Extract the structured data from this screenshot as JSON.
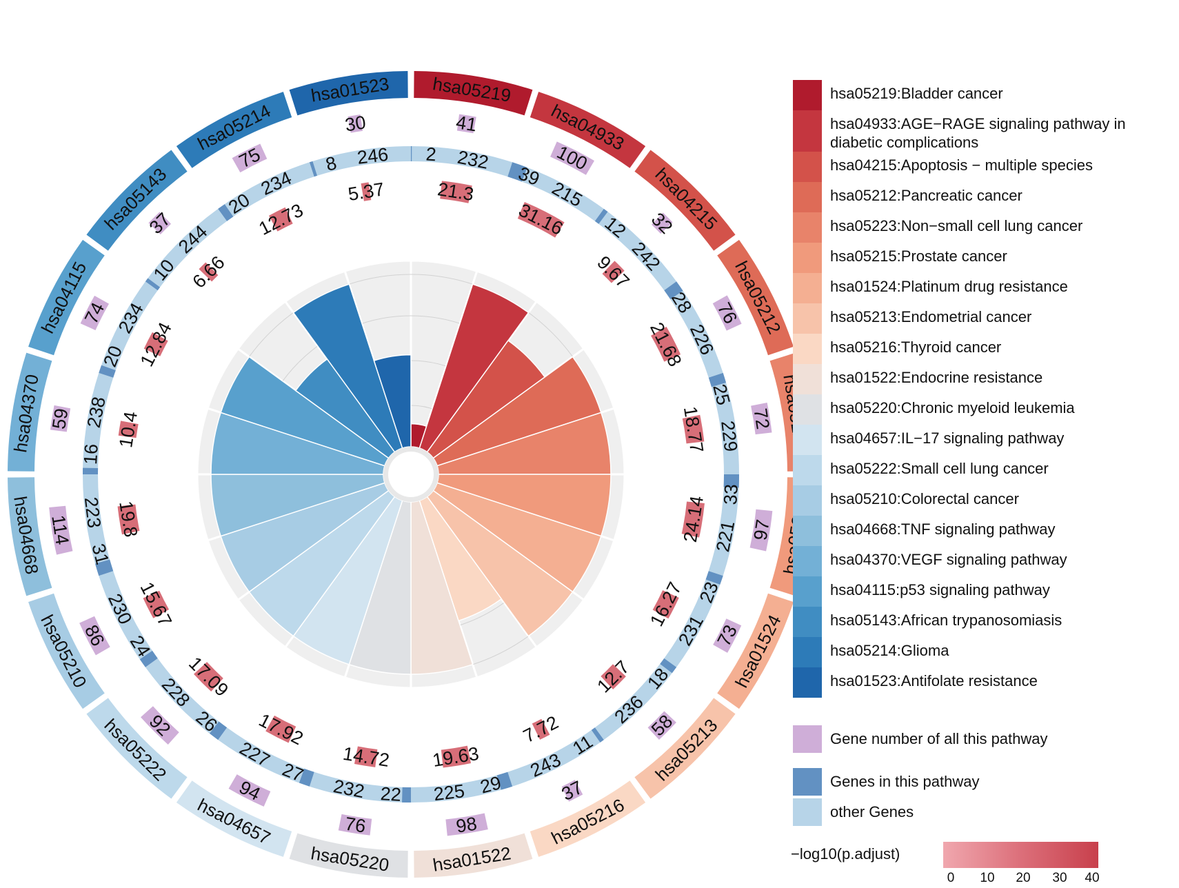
{
  "chart_data": {
    "type": "circular-enrichment",
    "pathways": [
      {
        "id": "hsa05219",
        "name": "hsa05219:Bladder cancer",
        "color": "#b01b2d",
        "total": 41,
        "genes_in": 2,
        "other": 232,
        "neglog10": 21.3
      },
      {
        "id": "hsa04933",
        "name": "hsa04933:AGE−RAGE signaling pathway in diabetic complications",
        "color": "#c4363f",
        "total": 100,
        "genes_in": 39,
        "other": 215,
        "neglog10": 31.16
      },
      {
        "id": "hsa04215",
        "name": "hsa04215:Apoptosis − multiple species",
        "color": "#d3524a",
        "total": 32,
        "genes_in": 12,
        "other": 242,
        "neglog10": 9.67
      },
      {
        "id": "hsa05212",
        "name": "hsa05212:Pancreatic cancer",
        "color": "#de6b57",
        "total": 76,
        "genes_in": 28,
        "other": 226,
        "neglog10": 21.68
      },
      {
        "id": "hsa05223",
        "name": "hsa05223:Non−small cell lung cancer",
        "color": "#e8836a",
        "total": 72,
        "genes_in": 25,
        "other": 229,
        "neglog10": 18.77
      },
      {
        "id": "hsa05215",
        "name": "hsa05215:Prostate cancer",
        "color": "#f09a7c",
        "total": 97,
        "genes_in": 33,
        "other": 221,
        "neglog10": 24.14
      },
      {
        "id": "hsa01524",
        "name": "hsa01524:Platinum drug resistance",
        "color": "#f4af92",
        "total": 73,
        "genes_in": 23,
        "other": 231,
        "neglog10": 16.27
      },
      {
        "id": "hsa05213",
        "name": "hsa05213:Endometrial cancer",
        "color": "#f7c3aa",
        "total": 58,
        "genes_in": 18,
        "other": 236,
        "neglog10": 12.7
      },
      {
        "id": "hsa05216",
        "name": "hsa05216:Thyroid cancer",
        "color": "#fad8c4",
        "total": 37,
        "genes_in": 11,
        "other": 243,
        "neglog10": 7.72
      },
      {
        "id": "hsa01522",
        "name": "hsa01522:Endocrine resistance",
        "color": "#f0e0d8",
        "total": 98,
        "genes_in": 29,
        "other": 225,
        "neglog10": 19.63
      },
      {
        "id": "hsa05220",
        "name": "hsa05220:Chronic myeloid leukemia",
        "color": "#dfe1e4",
        "total": 76,
        "genes_in": 22,
        "other": 232,
        "neglog10": 14.72
      },
      {
        "id": "hsa04657",
        "name": "hsa04657:IL−17 signaling pathway",
        "color": "#d2e4f0",
        "total": 94,
        "genes_in": 27,
        "other": 227,
        "neglog10": 17.92
      },
      {
        "id": "hsa05222",
        "name": "hsa05222:Small cell lung cancer",
        "color": "#bdd9eb",
        "total": 92,
        "genes_in": 26,
        "other": 228,
        "neglog10": 17.09
      },
      {
        "id": "hsa05210",
        "name": "hsa05210:Colorectal cancer",
        "color": "#a7cce4",
        "total": 86,
        "genes_in": 24,
        "other": 230,
        "neglog10": 15.67
      },
      {
        "id": "hsa04668",
        "name": "hsa04668:TNF signaling pathway",
        "color": "#8ebfdc",
        "total": 114,
        "genes_in": 31,
        "other": 223,
        "neglog10": 19.8
      },
      {
        "id": "hsa04370",
        "name": "hsa04370:VEGF signaling pathway",
        "color": "#73b0d6",
        "total": 59,
        "genes_in": 16,
        "other": 238,
        "neglog10": 10.4
      },
      {
        "id": "hsa04115",
        "name": "hsa04115:p53 signaling pathway",
        "color": "#58a0cd",
        "total": 74,
        "genes_in": 20,
        "other": 234,
        "neglog10": 12.84
      },
      {
        "id": "hsa05143",
        "name": "hsa05143:African trypanosomiasis",
        "color": "#408dc2",
        "total": 37,
        "genes_in": 10,
        "other": 244,
        "neglog10": 6.66
      },
      {
        "id": "hsa05214",
        "name": "hsa05214:Glioma",
        "color": "#2d7bb8",
        "total": 75,
        "genes_in": 20,
        "other": 234,
        "neglog10": 12.73
      },
      {
        "id": "hsa01523",
        "name": "hsa01523:Antifolate resistance",
        "color": "#1f66ab",
        "total": 30,
        "genes_in": 8,
        "other": 246,
        "neglog10": 5.37
      }
    ],
    "legend_extra": [
      {
        "label": "Gene number of all this pathway",
        "color": "#cfaed8"
      },
      {
        "label": "Genes in this pathway",
        "color": "#6291c2"
      },
      {
        "label": "other Genes",
        "color": "#b7d4e8"
      }
    ],
    "gradient": {
      "title": "−log10(p.adjust)",
      "ticks": [
        "0",
        "10",
        "20",
        "30",
        "40"
      ],
      "max": 40
    },
    "total_color": "#cfaed8",
    "genes_color": "#6291c2",
    "other_color": "#b7d4e8",
    "neglog_color": "#d05560",
    "inner_bg": "#efefef",
    "inner_bar_max": 15
  }
}
